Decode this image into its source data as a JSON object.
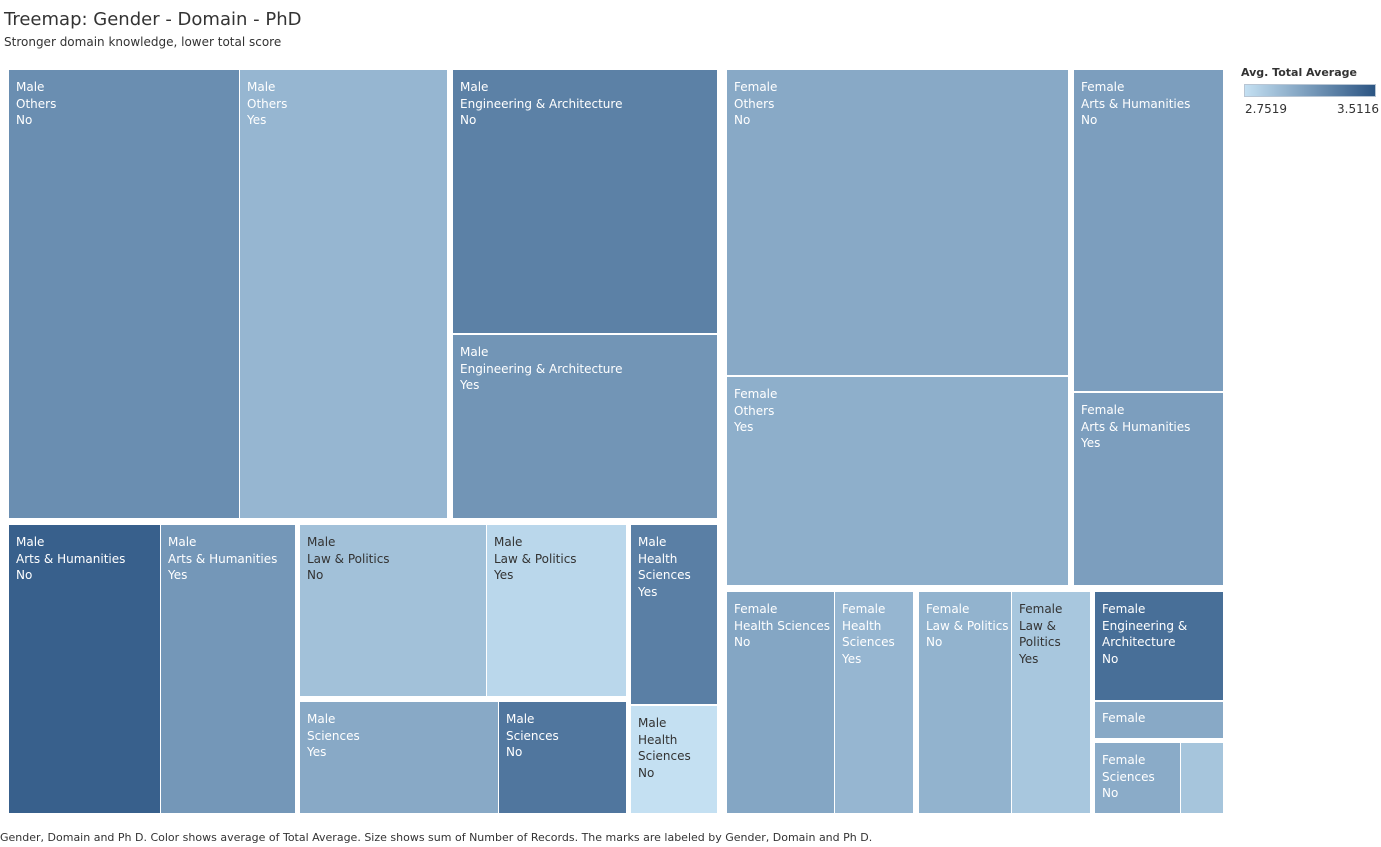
{
  "title": "Treemap: Gender - Domain - PhD",
  "subtitle": "Stronger domain knowledge, lower total score",
  "legend": {
    "title": "Avg. Total Average",
    "min": "2.7519",
    "max": "3.5116",
    "min_color": "#c4e0f2",
    "max_color": "#2c5583"
  },
  "caption": "Gender, Domain and Ph D.  Color shows average of Total Average.  Size shows sum of Number of Records.  The marks are labeled by Gender, Domain and Ph D.",
  "chart_data": {
    "type": "treemap",
    "size_measure": "Number of Records",
    "color_measure": "Avg. Total Average",
    "color_range": [
      2.7519,
      3.5116
    ],
    "levels": [
      "Gender",
      "Domain",
      "Ph D"
    ],
    "marks": [
      {
        "id": "m-others-no",
        "gender": "Male",
        "domain": "Others",
        "phd": "No",
        "label": [
          "Male",
          "Others",
          "No"
        ],
        "records": 104,
        "value": 3.2
      },
      {
        "id": "m-others-yes",
        "gender": "Male",
        "domain": "Others",
        "phd": "Yes",
        "label": [
          "Male",
          "Others",
          "Yes"
        ],
        "records": 93,
        "value": 2.98
      },
      {
        "id": "m-eng-no",
        "gender": "Male",
        "domain": "Engineering & Architecture",
        "phd": "No",
        "label": [
          "Male",
          "Engineering & Architecture",
          "No"
        ],
        "records": 70,
        "value": 3.27
      },
      {
        "id": "m-eng-yes",
        "gender": "Male",
        "domain": "Engineering & Architecture",
        "phd": "Yes",
        "label": [
          "Male",
          "Engineering & Architecture",
          "Yes"
        ],
        "records": 48,
        "value": 3.16
      },
      {
        "id": "m-arts-no",
        "gender": "Male",
        "domain": "Arts & Humanities",
        "phd": "No",
        "label": [
          "Male",
          "Arts & Humanities",
          "No"
        ],
        "records": 35,
        "value": 3.45
      },
      {
        "id": "m-arts-yes",
        "gender": "Male",
        "domain": "Arts & Humanities",
        "phd": "Yes",
        "label": [
          "Male",
          "Arts & Humanities",
          "Yes"
        ],
        "records": 31,
        "value": 3.15
      },
      {
        "id": "m-law-no",
        "gender": "Male",
        "domain": "Law & Politics",
        "phd": "No",
        "label": [
          "Male",
          "Law & Politics",
          "No"
        ],
        "records": 21,
        "value": 2.92
      },
      {
        "id": "m-law-yes",
        "gender": "Male",
        "domain": "Law & Politics",
        "phd": "Yes",
        "label": [
          "Male",
          "Law & Politics",
          "Yes"
        ],
        "records": 15,
        "value": 2.8
      },
      {
        "id": "m-sci-yes",
        "gender": "Male",
        "domain": "Sciences",
        "phd": "Yes",
        "label": [
          "Male",
          "Sciences",
          "Yes"
        ],
        "records": 15,
        "value": 3.05
      },
      {
        "id": "m-sci-no",
        "gender": "Male",
        "domain": "Sciences",
        "phd": "No",
        "label": [
          "Male",
          "Sciences",
          "No"
        ],
        "records": 10,
        "value": 3.33
      },
      {
        "id": "m-health-yes",
        "gender": "Male",
        "domain": "Health Sciences",
        "phd": "Yes",
        "label": [
          "Male",
          "Health",
          "Sciences",
          "Yes"
        ],
        "records": 14,
        "value": 3.28
      },
      {
        "id": "m-health-no",
        "gender": "Male",
        "domain": "Health Sciences",
        "phd": "No",
        "label": [
          "Male",
          "Health",
          "Sciences",
          "No"
        ],
        "records": 8,
        "value": 2.75
      },
      {
        "id": "f-others-no",
        "gender": "Female",
        "domain": "Others",
        "phd": "No",
        "label": [
          "Female",
          "Others",
          "No"
        ],
        "records": 88,
        "value": 3.05
      },
      {
        "id": "f-others-yes",
        "gender": "Female",
        "domain": "Others",
        "phd": "Yes",
        "label": [
          "Female",
          "Others",
          "Yes"
        ],
        "records": 58,
        "value": 3.02
      },
      {
        "id": "f-arts-no",
        "gender": "Female",
        "domain": "Arts & Humanities",
        "phd": "No",
        "label": [
          "Female",
          "Arts & Humanities",
          "No"
        ],
        "records": 40,
        "value": 3.11
      },
      {
        "id": "f-arts-yes",
        "gender": "Female",
        "domain": "Arts & Humanities",
        "phd": "Yes",
        "label": [
          "Female",
          "Arts & Humanities",
          "Yes"
        ],
        "records": 24,
        "value": 3.11
      },
      {
        "id": "f-health-no",
        "gender": "Female",
        "domain": "Health Sciences",
        "phd": "No",
        "label": [
          "Female",
          "Health Sciences",
          "No"
        ],
        "records": 19,
        "value": 3.07
      },
      {
        "id": "f-health-yes",
        "gender": "Female",
        "domain": "Health Sciences",
        "phd": "Yes",
        "label": [
          "Female",
          "Health",
          "Sciences",
          "Yes"
        ],
        "records": 14,
        "value": 2.98
      },
      {
        "id": "f-law-no",
        "gender": "Female",
        "domain": "Law & Politics",
        "phd": "No",
        "label": [
          "Female",
          "Law & Politics",
          "No"
        ],
        "records": 16,
        "value": 3.0
      },
      {
        "id": "f-law-yes",
        "gender": "Female",
        "domain": "Law & Politics",
        "phd": "Yes",
        "label": [
          "Female",
          "Law &",
          "Politics",
          "Yes"
        ],
        "records": 13,
        "value": 2.89
      },
      {
        "id": "f-eng-no",
        "gender": "Female",
        "domain": "Engineering & Architecture",
        "phd": "No",
        "label": [
          "Female",
          "Engineering &",
          "Architecture",
          "No"
        ],
        "records": 9,
        "value": 3.37
      },
      {
        "id": "f-eng-yes",
        "gender": "Female",
        "domain": "Engineering & Architecture",
        "phd": "Yes",
        "label": [
          "Female"
        ],
        "records": 3,
        "value": 3.05
      },
      {
        "id": "f-sci-no",
        "gender": "Female",
        "domain": "Sciences",
        "phd": "No",
        "label": [
          "Female",
          "Sciences",
          "No"
        ],
        "records": 5,
        "value": 3.04
      },
      {
        "id": "f-sci-yes",
        "gender": "Female",
        "domain": "Sciences",
        "phd": "Yes",
        "label": [],
        "records": 3,
        "value": 2.9
      }
    ]
  }
}
